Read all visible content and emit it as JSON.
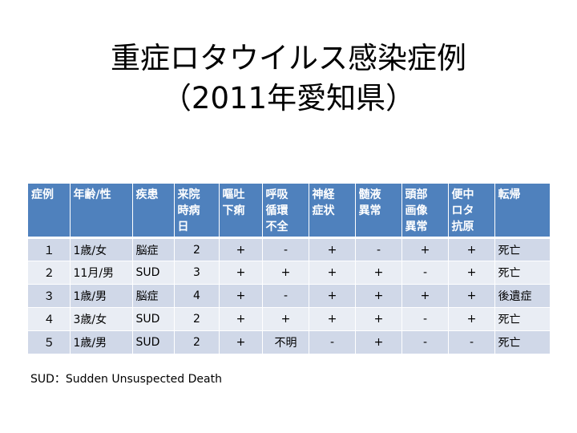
{
  "title": {
    "line1": "重症ロタウイルス感染症例",
    "line2": "（2011年愛知県）"
  },
  "table": {
    "headers": [
      "症例",
      "年齢/性",
      "疾患",
      "来院\n時病\n日",
      "嘔吐\n下痢",
      "呼吸\n循環\n不全",
      "神経\n症状",
      "髄液\n異常",
      "頭部\n画像\n異常",
      "便中\nロタ\n抗原",
      "転帰"
    ],
    "rows": [
      [
        "１",
        "1歳/女",
        "脳症",
        "2",
        "+",
        "-",
        "+",
        "-",
        "+",
        "+",
        "死亡"
      ],
      [
        "２",
        "11月/男",
        "SUD",
        "3",
        "+",
        "+",
        "+",
        "+",
        "-",
        "+",
        "死亡"
      ],
      [
        "３",
        "1歳/男",
        "脳症",
        "4",
        "+",
        "-",
        "+",
        "+",
        "+",
        "+",
        "後遺症"
      ],
      [
        "４",
        "3歳/女",
        "SUD",
        "2",
        "+",
        "+",
        "+",
        "+",
        "-",
        "+",
        "死亡"
      ],
      [
        "５",
        "1歳/男",
        "SUD",
        "2",
        "+",
        "不明",
        "-",
        "+",
        "-",
        "-",
        "死亡"
      ]
    ]
  },
  "footnote": "SUD：Sudden Unsuspected Death"
}
